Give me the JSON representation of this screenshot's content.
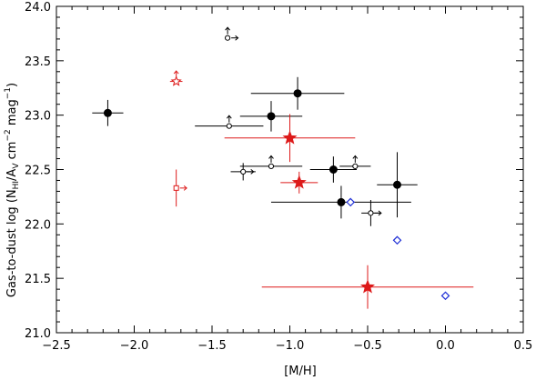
{
  "chart_data": {
    "type": "scatter",
    "title": "",
    "xlabel": "[M/H]",
    "ylabel_parts": {
      "prefix": "Gas-to-dust log (N",
      "sub1": "HI",
      "mid": "/A",
      "sub2": "V",
      "mid2": " cm",
      "sup1": "−2",
      "mid3": " mag",
      "sup2": "−1",
      "suffix": ")"
    },
    "xlim": [
      -2.5,
      0.5
    ],
    "ylim": [
      21.0,
      24.0
    ],
    "x_ticks": [
      -2.5,
      -2.0,
      -1.5,
      -1.0,
      -0.5,
      0.0,
      0.5
    ],
    "x_tick_labels": [
      "−2.5",
      "−2.0",
      "−1.5",
      "−1.0",
      "−0.5",
      "0.0",
      "0.5"
    ],
    "y_ticks": [
      21.0,
      21.5,
      22.0,
      22.5,
      23.0,
      23.5,
      24.0
    ],
    "y_tick_labels": [
      "21.0",
      "21.5",
      "22.0",
      "22.5",
      "23.0",
      "23.5",
      "24.0"
    ],
    "colors": {
      "black": "#000000",
      "red": "#dd1a1a",
      "blue": "#1f2fd6",
      "gray": "#555555"
    },
    "series": [
      {
        "name": "black-filled-circles",
        "marker": "filled-circle",
        "color": "black",
        "points": [
          {
            "x": -2.17,
            "y": 23.02,
            "xerr": 0.1,
            "yerr": 0.12
          },
          {
            "x": -0.95,
            "y": 23.2,
            "xerr": 0.3,
            "yerr": 0.15
          },
          {
            "x": -1.12,
            "y": 22.99,
            "xerr": 0.2,
            "yerr": 0.14
          },
          {
            "x": -0.72,
            "y": 22.5,
            "xerr": 0.15,
            "yerr": 0.12
          },
          {
            "x": -0.67,
            "y": 22.2,
            "xerr": 0.45,
            "yerr": 0.15
          },
          {
            "x": -0.31,
            "y": 22.36,
            "xerr": 0.13,
            "yerr": 0.3
          }
        ]
      },
      {
        "name": "black-open-circles-upper-limit",
        "marker": "open-circle",
        "color": "black",
        "points": [
          {
            "x": -1.39,
            "y": 22.9,
            "xerr": 0.22,
            "up": true
          },
          {
            "x": -1.12,
            "y": 22.53,
            "xerr": 0.2,
            "up": true
          },
          {
            "x": -0.58,
            "y": 22.53,
            "xerr": 0.1,
            "up": true
          }
        ]
      },
      {
        "name": "black-open-circles-lower-limit",
        "marker": "open-circle",
        "color": "black",
        "points": [
          {
            "x": -1.3,
            "y": 22.48,
            "xerr": 0.08,
            "yerr": 0.08,
            "right": true
          },
          {
            "x": -0.48,
            "y": 22.1,
            "xerr": 0.06,
            "yerr": 0.12,
            "right": true
          }
        ]
      },
      {
        "name": "black-open-circle-corner-limit",
        "marker": "open-circle",
        "color": "black",
        "points": [
          {
            "x": -1.4,
            "y": 23.71,
            "up": true,
            "right": true
          }
        ]
      },
      {
        "name": "red-filled-stars",
        "marker": "filled-star",
        "color": "red",
        "points": [
          {
            "x": -1.0,
            "y": 22.79,
            "xerr": 0.42,
            "yerr": 0.22
          },
          {
            "x": -0.94,
            "y": 22.38,
            "xerr": 0.12,
            "yerr": 0.1
          },
          {
            "x": -0.5,
            "y": 21.42,
            "xerr": 0.68,
            "yerr": 0.2
          }
        ]
      },
      {
        "name": "red-open-star-upper-limit",
        "marker": "open-star",
        "color": "red",
        "points": [
          {
            "x": -1.73,
            "y": 23.31,
            "xerr": 0.04,
            "up": true
          }
        ]
      },
      {
        "name": "red-open-square-lower-limit",
        "marker": "open-square",
        "color": "red",
        "points": [
          {
            "x": -1.73,
            "y": 22.33,
            "yerr": 0.17,
            "right": true
          }
        ]
      },
      {
        "name": "blue-open-diamonds",
        "marker": "open-diamond",
        "color": "blue",
        "points": [
          {
            "x": -0.61,
            "y": 22.2
          },
          {
            "x": -0.31,
            "y": 21.85
          },
          {
            "x": 0.0,
            "y": 21.34
          }
        ]
      }
    ]
  }
}
